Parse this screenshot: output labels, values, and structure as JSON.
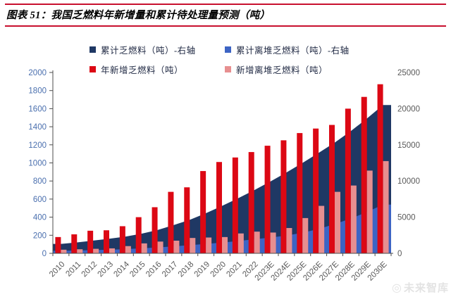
{
  "header": {
    "title": "图表 51：我国乏燃料年新增量和累计待处理量预测（吨）"
  },
  "watermark": {
    "logo": "◎",
    "text": "未来智库"
  },
  "colors": {
    "rule_red": "#c8102e",
    "axis_line": "#4d4d4d",
    "left_axis_label": "#4a6fae",
    "right_axis_label": "#595959",
    "x_axis_label": "#595959",
    "legend_text": "#222b45",
    "background": "#ffffff"
  },
  "chart_data": {
    "type": "combo (area + bar)",
    "title": "我国乏燃料年新增量和累计待处理量预测（吨）",
    "xlabel": "",
    "ylabel": "",
    "grid": false,
    "legend_position": "top",
    "categories": [
      "2010",
      "2011",
      "2012",
      "2013",
      "2014",
      "2015",
      "2016",
      "2017",
      "2018",
      "2019",
      "2020",
      "2021",
      "2022",
      "2023E",
      "2024E",
      "2025E",
      "2026E",
      "2027E",
      "2028E",
      "2029E",
      "2030E"
    ],
    "series": [
      {
        "name": "累计乏燃料（吨）-右轴",
        "type": "area",
        "axis": "right",
        "color": "#1f3864",
        "values": [
          1300,
          1510,
          1760,
          2015,
          2315,
          2715,
          3225,
          3905,
          4635,
          5545,
          6555,
          7615,
          8735,
          9925,
          11175,
          12505,
          13885,
          15305,
          16905,
          18635,
          20505
        ]
      },
      {
        "name": "累计离堆乏燃料（吨）-右轴",
        "type": "area",
        "axis": "right",
        "color": "#3d64c4",
        "values": [
          350,
          395,
          445,
          500,
          580,
          690,
          820,
          960,
          1130,
          1305,
          1485,
          1705,
          1945,
          2175,
          2455,
          2845,
          3370,
          4050,
          4800,
          5715,
          6735
        ]
      },
      {
        "name": "年新增乏燃料（吨）",
        "type": "bar",
        "axis": "left",
        "color": "#dc0814",
        "values": [
          180,
          210,
          250,
          255,
          300,
          400,
          510,
          680,
          730,
          910,
          1010,
          1060,
          1120,
          1190,
          1250,
          1330,
          1380,
          1420,
          1600,
          1730,
          1870
        ]
      },
      {
        "name": "新增离堆乏燃料（吨）",
        "type": "bar",
        "axis": "left",
        "color": "#e78f90",
        "values": [
          40,
          45,
          50,
          55,
          80,
          110,
          130,
          140,
          170,
          175,
          180,
          220,
          240,
          230,
          280,
          390,
          525,
          680,
          750,
          915,
          1020
        ]
      }
    ],
    "left_axis": {
      "min": 0,
      "max": 2000,
      "ticks": [
        0,
        200,
        400,
        600,
        800,
        1000,
        1200,
        1400,
        1600,
        1800,
        2000
      ],
      "color": "#4a6fae"
    },
    "right_axis": {
      "min": 0,
      "max": 25000,
      "ticks": [
        0,
        5000,
        10000,
        15000,
        20000,
        25000
      ],
      "color": "#595959"
    }
  }
}
